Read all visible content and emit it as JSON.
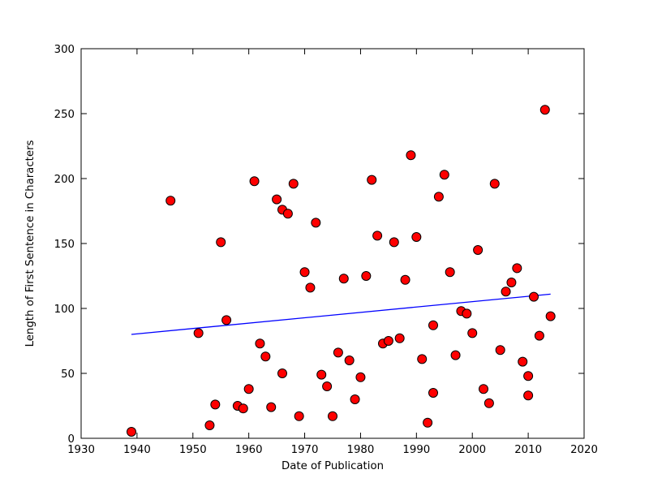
{
  "chart_data": {
    "type": "scatter",
    "title": "",
    "xlabel": "Date of Publication",
    "ylabel": "Length of First Sentence in Characters",
    "xlim": [
      1930,
      2020
    ],
    "ylim": [
      0,
      300
    ],
    "xticks": [
      1930,
      1940,
      1950,
      1960,
      1970,
      1980,
      1990,
      2000,
      2010,
      2020
    ],
    "yticks": [
      0,
      50,
      100,
      150,
      200,
      250,
      300
    ],
    "grid": false,
    "legend_position": "none",
    "background_color": "#ffffff",
    "marker_color": "#ff0000",
    "marker_edge_color": "#000000",
    "trend_line_color": "#0000ff",
    "axis_color": "#000000",
    "points": [
      [
        1939,
        5
      ],
      [
        1946,
        183
      ],
      [
        1951,
        81
      ],
      [
        1953,
        10
      ],
      [
        1954,
        26
      ],
      [
        1955,
        151
      ],
      [
        1956,
        91
      ],
      [
        1958,
        25
      ],
      [
        1959,
        23
      ],
      [
        1960,
        38
      ],
      [
        1961,
        198
      ],
      [
        1962,
        73
      ],
      [
        1963,
        63
      ],
      [
        1964,
        24
      ],
      [
        1965,
        184
      ],
      [
        1966,
        176
      ],
      [
        1966,
        50
      ],
      [
        1967,
        173
      ],
      [
        1968,
        196
      ],
      [
        1969,
        17
      ],
      [
        1970,
        128
      ],
      [
        1971,
        116
      ],
      [
        1972,
        166
      ],
      [
        1973,
        49
      ],
      [
        1974,
        40
      ],
      [
        1975,
        17
      ],
      [
        1976,
        66
      ],
      [
        1977,
        123
      ],
      [
        1978,
        60
      ],
      [
        1979,
        30
      ],
      [
        1980,
        47
      ],
      [
        1981,
        125
      ],
      [
        1982,
        199
      ],
      [
        1983,
        156
      ],
      [
        1984,
        73
      ],
      [
        1985,
        75
      ],
      [
        1986,
        151
      ],
      [
        1987,
        77
      ],
      [
        1988,
        122
      ],
      [
        1989,
        218
      ],
      [
        1990,
        155
      ],
      [
        1991,
        61
      ],
      [
        1992,
        12
      ],
      [
        1993,
        87
      ],
      [
        1993,
        35
      ],
      [
        1994,
        186
      ],
      [
        1995,
        203
      ],
      [
        1996,
        128
      ],
      [
        1997,
        64
      ],
      [
        1998,
        98
      ],
      [
        1999,
        96
      ],
      [
        2000,
        81
      ],
      [
        2001,
        145
      ],
      [
        2002,
        38
      ],
      [
        2003,
        27
      ],
      [
        2004,
        196
      ],
      [
        2005,
        68
      ],
      [
        2006,
        113
      ],
      [
        2007,
        120
      ],
      [
        2008,
        131
      ],
      [
        2009,
        59
      ],
      [
        2010,
        48
      ],
      [
        2010,
        33
      ],
      [
        2011,
        109
      ],
      [
        2012,
        79
      ],
      [
        2013,
        253
      ],
      [
        2014,
        94
      ]
    ],
    "trend_line": {
      "x": [
        1939,
        2014
      ],
      "y": [
        80,
        111
      ]
    }
  }
}
